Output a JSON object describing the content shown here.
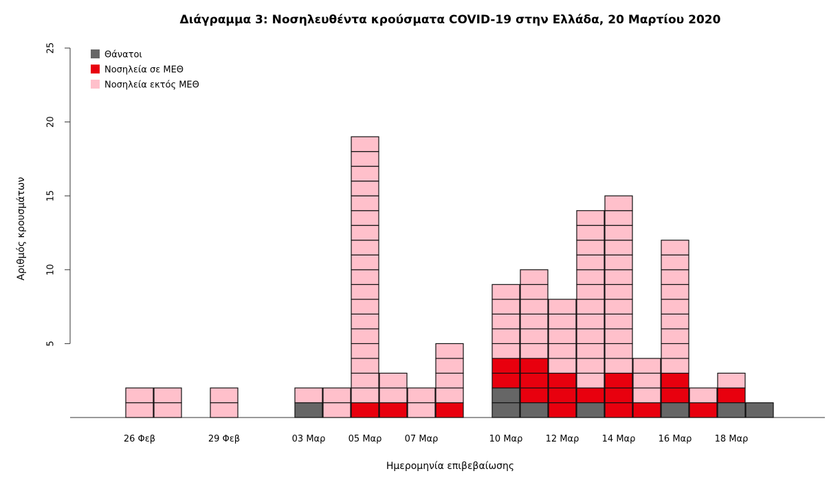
{
  "chart_data": {
    "type": "bar",
    "stacked": true,
    "unit_blocks": true,
    "title": "Διάγραμμα 3: Νοσηλευθέντα κρούσματα COVID-19 στην Ελλάδα, 20 Μαρτίου 2020",
    "xlabel": "Ημερομηνία επιβεβαίωσης",
    "ylabel": "Αριθμός κρουσμάτων",
    "ylim": [
      0,
      25
    ],
    "yticks": [
      5,
      10,
      15,
      20,
      25
    ],
    "grid": false,
    "legend_position": "top-left",
    "categories": [
      "26 Φεβ",
      "27 Φεβ",
      "28 Φεβ",
      "29 Φεβ",
      "01 Μαρ",
      "02 Μαρ",
      "03 Μαρ",
      "04 Μαρ",
      "05 Μαρ",
      "06 Μαρ",
      "07 Μαρ",
      "08 Μαρ",
      "09 Μαρ",
      "10 Μαρ",
      "11 Μαρ",
      "12 Μαρ",
      "13 Μαρ",
      "14 Μαρ",
      "15 Μαρ",
      "16 Μαρ",
      "17 Μαρ",
      "18 Μαρ",
      "19 Μαρ"
    ],
    "xtick_labels": [
      "26 Φεβ",
      "29 Φεβ",
      "03 Μαρ",
      "05 Μαρ",
      "07 Μαρ",
      "10 Μαρ",
      "12 Μαρ",
      "14 Μαρ",
      "16 Μαρ",
      "18 Μαρ"
    ],
    "series": [
      {
        "name": "Θάνατοι",
        "color": "#666666",
        "values": [
          0,
          0,
          0,
          0,
          0,
          0,
          1,
          0,
          0,
          0,
          0,
          0,
          0,
          2,
          1,
          0,
          1,
          0,
          0,
          1,
          0,
          1,
          1
        ]
      },
      {
        "name": "Νοσηλεία σε ΜΕΘ",
        "color": "#e8000e",
        "values": [
          0,
          0,
          0,
          0,
          0,
          0,
          0,
          0,
          1,
          1,
          0,
          1,
          0,
          2,
          3,
          3,
          1,
          3,
          1,
          2,
          1,
          1,
          0
        ]
      },
      {
        "name": "Νοσηλεία εκτός ΜΕΘ",
        "color": "#ffc0cb",
        "values": [
          2,
          2,
          0,
          2,
          0,
          0,
          1,
          2,
          18,
          2,
          2,
          4,
          0,
          5,
          6,
          5,
          12,
          12,
          3,
          9,
          1,
          1,
          0
        ]
      }
    ]
  }
}
